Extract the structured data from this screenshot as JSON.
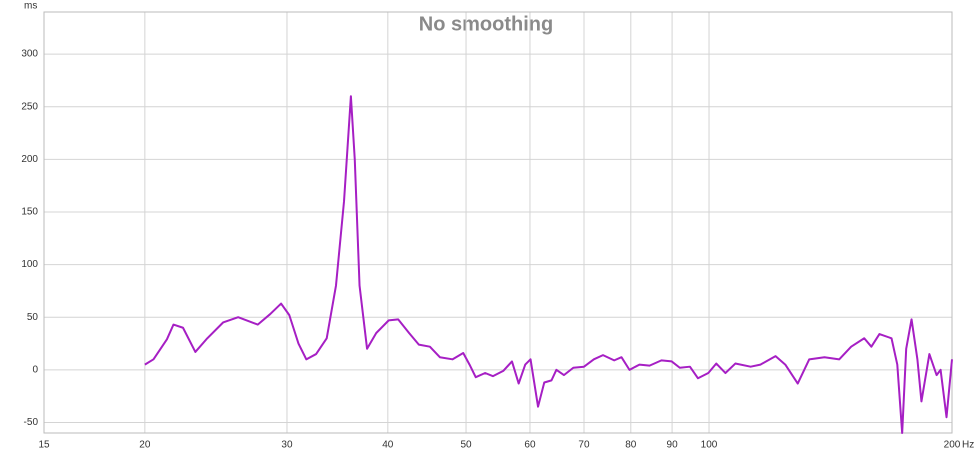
{
  "chart_data": {
    "type": "line",
    "title": "No smoothing",
    "y_label": "ms",
    "x_label": "Hz",
    "log_x": true,
    "grid": true,
    "color": "#a61fc4",
    "xlim": [
      15,
      200
    ],
    "ylim": [
      -60,
      340
    ],
    "xticks": [
      15,
      20,
      30,
      40,
      50,
      60,
      70,
      80,
      90,
      100,
      200
    ],
    "yticks": [
      -50,
      0,
      50,
      100,
      150,
      200,
      250,
      300
    ],
    "x": [
      20.0,
      20.5,
      21.3,
      21.7,
      22.3,
      23.1,
      23.9,
      25.0,
      26.1,
      27.6,
      28.6,
      29.5,
      30.2,
      31.0,
      31.7,
      32.6,
      33.6,
      34.5,
      35.3,
      36.0,
      36.4,
      36.9,
      37.7,
      38.7,
      40.1,
      41.2,
      42.5,
      43.7,
      45.1,
      46.4,
      48.1,
      49.6,
      50.5,
      51.4,
      52.8,
      54.0,
      55.6,
      57.0,
      58.1,
      59.2,
      60.1,
      61.4,
      62.5,
      63.8,
      64.7,
      66.1,
      67.9,
      70.0,
      72.0,
      73.9,
      76.3,
      77.9,
      79.7,
      82.0,
      84.4,
      87.3,
      89.9,
      92.0,
      94.7,
      96.9,
      99.8,
      102.1,
      104.8,
      107.8,
      112.6,
      115.8,
      120.9,
      124.3,
      128.8,
      133.1,
      139.0,
      145.0,
      150.0,
      155.7,
      158.9,
      162.6,
      168.3,
      171.1,
      173.5,
      175.5,
      178.2,
      181.2,
      183.3,
      187.5,
      191.4,
      193.6,
      196.9,
      200.0
    ],
    "values": [
      5,
      10,
      29,
      43,
      40,
      17,
      30,
      45,
      50,
      43,
      53,
      63,
      52,
      25,
      10,
      15,
      30,
      80,
      160,
      260,
      200,
      80,
      20,
      35,
      47,
      48,
      35,
      24,
      22,
      12,
      10,
      16,
      5,
      -7,
      -3,
      -6,
      -1,
      8,
      -13,
      5,
      10,
      -35,
      -12,
      -10,
      0,
      -5,
      2,
      3,
      10,
      14,
      9,
      12,
      0,
      5,
      4,
      9,
      8,
      2,
      3,
      -8,
      -3,
      6,
      -3,
      6,
      3,
      5,
      13,
      5,
      -13,
      10,
      12,
      10,
      22,
      30,
      22,
      34,
      30,
      5,
      -60,
      20,
      48,
      10,
      -30,
      15,
      -5,
      0,
      -45,
      10
    ]
  }
}
